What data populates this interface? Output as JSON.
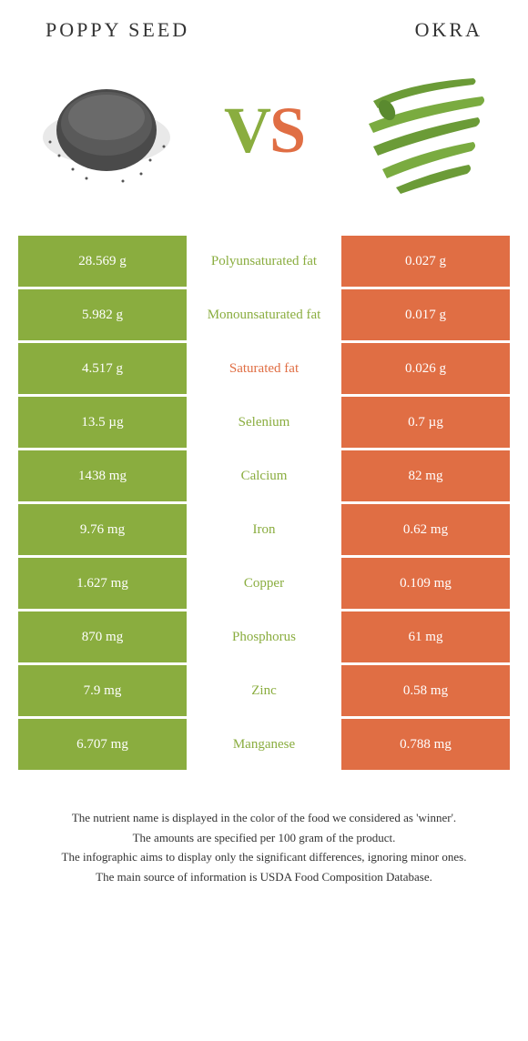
{
  "left_food": {
    "title": "Poppy seed",
    "color": "#8aad3f"
  },
  "right_food": {
    "title": "Okra",
    "color": "#e06e44"
  },
  "vs_label": "VS",
  "rows": [
    {
      "nutrient": "Polyunsaturated fat",
      "left": "28.569 g",
      "right": "0.027 g",
      "winner": "left"
    },
    {
      "nutrient": "Monounsaturated fat",
      "left": "5.982 g",
      "right": "0.017 g",
      "winner": "left"
    },
    {
      "nutrient": "Saturated fat",
      "left": "4.517 g",
      "right": "0.026 g",
      "winner": "right"
    },
    {
      "nutrient": "Selenium",
      "left": "13.5 µg",
      "right": "0.7 µg",
      "winner": "left"
    },
    {
      "nutrient": "Calcium",
      "left": "1438 mg",
      "right": "82 mg",
      "winner": "left"
    },
    {
      "nutrient": "Iron",
      "left": "9.76 mg",
      "right": "0.62 mg",
      "winner": "left"
    },
    {
      "nutrient": "Copper",
      "left": "1.627 mg",
      "right": "0.109 mg",
      "winner": "left"
    },
    {
      "nutrient": "Phosphorus",
      "left": "870 mg",
      "right": "61 mg",
      "winner": "left"
    },
    {
      "nutrient": "Zinc",
      "left": "7.9 mg",
      "right": "0.58 mg",
      "winner": "left"
    },
    {
      "nutrient": "Manganese",
      "left": "6.707 mg",
      "right": "0.788 mg",
      "winner": "left"
    }
  ],
  "footer": {
    "line1": "The nutrient name is displayed in the color of the food we considered as 'winner'.",
    "line2": "The amounts are specified per 100 gram of the product.",
    "line3": "The infographic aims to display only the significant differences, ignoring minor ones.",
    "line4": "The main source of information is USDA Food Composition Database."
  },
  "colors": {
    "left_bg": "#8aad3f",
    "right_bg": "#e06e44",
    "text_white": "#ffffff",
    "text_dark": "#333333",
    "page_bg": "#ffffff"
  }
}
